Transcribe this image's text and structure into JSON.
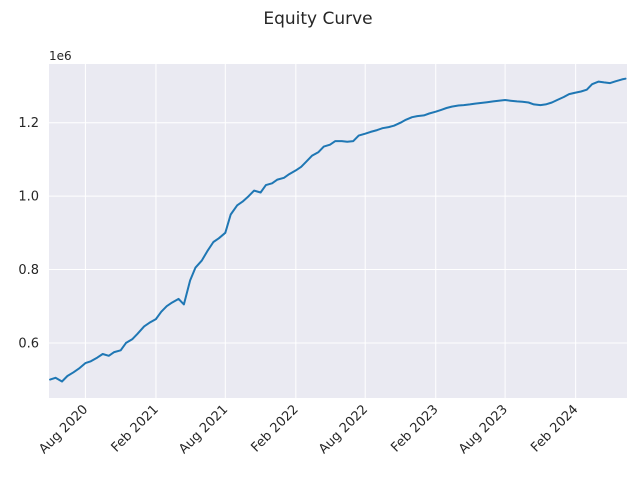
{
  "chart_data": {
    "type": "line",
    "title": "Equity Curve",
    "xlabel": "",
    "ylabel": "",
    "y_scale_label": "1e6",
    "x_ticks": [
      "Aug 2020",
      "Feb 2021",
      "Aug 2021",
      "Feb 2022",
      "Aug 2022",
      "Feb 2023",
      "Aug 2023",
      "Feb 2024"
    ],
    "x_range": [
      "2020-04-28",
      "2024-06-14"
    ],
    "y_ticks": [
      0.6,
      0.8,
      1.0,
      1.2
    ],
    "ylim": [
      0.45,
      1.36
    ],
    "grid": true,
    "colors": {
      "line": "#1f77b4",
      "plot_background": "#eaeaf2",
      "grid": "#ffffff"
    },
    "series": [
      {
        "x": [
          "2020-05-01",
          "2020-05-15",
          "2020-06-01",
          "2020-06-15",
          "2020-07-01",
          "2020-07-15",
          "2020-08-01",
          "2020-08-15",
          "2020-09-01",
          "2020-09-15",
          "2020-10-01",
          "2020-10-15",
          "2020-11-01",
          "2020-11-15",
          "2020-12-01",
          "2020-12-15",
          "2021-01-01",
          "2021-01-15",
          "2021-02-01",
          "2021-02-15",
          "2021-03-01",
          "2021-03-15",
          "2021-04-01",
          "2021-04-15",
          "2021-05-01",
          "2021-05-15",
          "2021-06-01",
          "2021-06-15",
          "2021-07-01",
          "2021-07-15",
          "2021-08-01",
          "2021-08-15",
          "2021-09-01",
          "2021-09-15",
          "2021-10-01",
          "2021-10-15",
          "2021-11-01",
          "2021-11-15",
          "2021-12-01",
          "2021-12-15",
          "2022-01-01",
          "2022-01-15",
          "2022-02-01",
          "2022-02-15",
          "2022-03-01",
          "2022-03-15",
          "2022-04-01",
          "2022-04-15",
          "2022-05-01",
          "2022-05-15",
          "2022-06-01",
          "2022-06-15",
          "2022-07-01",
          "2022-07-15",
          "2022-08-01",
          "2022-08-15",
          "2022-09-01",
          "2022-09-15",
          "2022-10-01",
          "2022-10-15",
          "2022-11-01",
          "2022-11-15",
          "2022-12-01",
          "2022-12-15",
          "2023-01-01",
          "2023-01-15",
          "2023-02-01",
          "2023-02-15",
          "2023-03-01",
          "2023-03-15",
          "2023-04-01",
          "2023-04-15",
          "2023-05-01",
          "2023-05-15",
          "2023-06-01",
          "2023-06-15",
          "2023-07-01",
          "2023-07-15",
          "2023-08-01",
          "2023-08-15",
          "2023-09-01",
          "2023-09-15",
          "2023-10-01",
          "2023-10-15",
          "2023-11-01",
          "2023-11-15",
          "2023-12-01",
          "2023-12-15",
          "2024-01-01",
          "2024-01-15",
          "2024-02-01",
          "2024-02-15",
          "2024-03-01",
          "2024-03-15",
          "2024-04-01",
          "2024-04-15",
          "2024-05-01",
          "2024-05-15",
          "2024-06-01",
          "2024-06-10"
        ],
        "y": [
          0.5,
          0.505,
          0.495,
          0.51,
          0.52,
          0.53,
          0.545,
          0.55,
          0.56,
          0.57,
          0.565,
          0.575,
          0.58,
          0.6,
          0.61,
          0.625,
          0.645,
          0.655,
          0.665,
          0.685,
          0.7,
          0.71,
          0.72,
          0.705,
          0.77,
          0.805,
          0.825,
          0.85,
          0.875,
          0.885,
          0.9,
          0.95,
          0.975,
          0.985,
          1.0,
          1.015,
          1.01,
          1.03,
          1.035,
          1.045,
          1.05,
          1.06,
          1.07,
          1.08,
          1.095,
          1.11,
          1.12,
          1.135,
          1.14,
          1.15,
          1.15,
          1.148,
          1.15,
          1.165,
          1.17,
          1.175,
          1.18,
          1.185,
          1.188,
          1.192,
          1.2,
          1.208,
          1.215,
          1.218,
          1.22,
          1.225,
          1.23,
          1.235,
          1.24,
          1.244,
          1.247,
          1.248,
          1.25,
          1.252,
          1.254,
          1.256,
          1.258,
          1.26,
          1.262,
          1.26,
          1.258,
          1.257,
          1.255,
          1.25,
          1.248,
          1.25,
          1.255,
          1.262,
          1.27,
          1.278,
          1.282,
          1.285,
          1.29,
          1.305,
          1.312,
          1.31,
          1.308,
          1.313,
          1.318,
          1.32
        ]
      }
    ]
  }
}
